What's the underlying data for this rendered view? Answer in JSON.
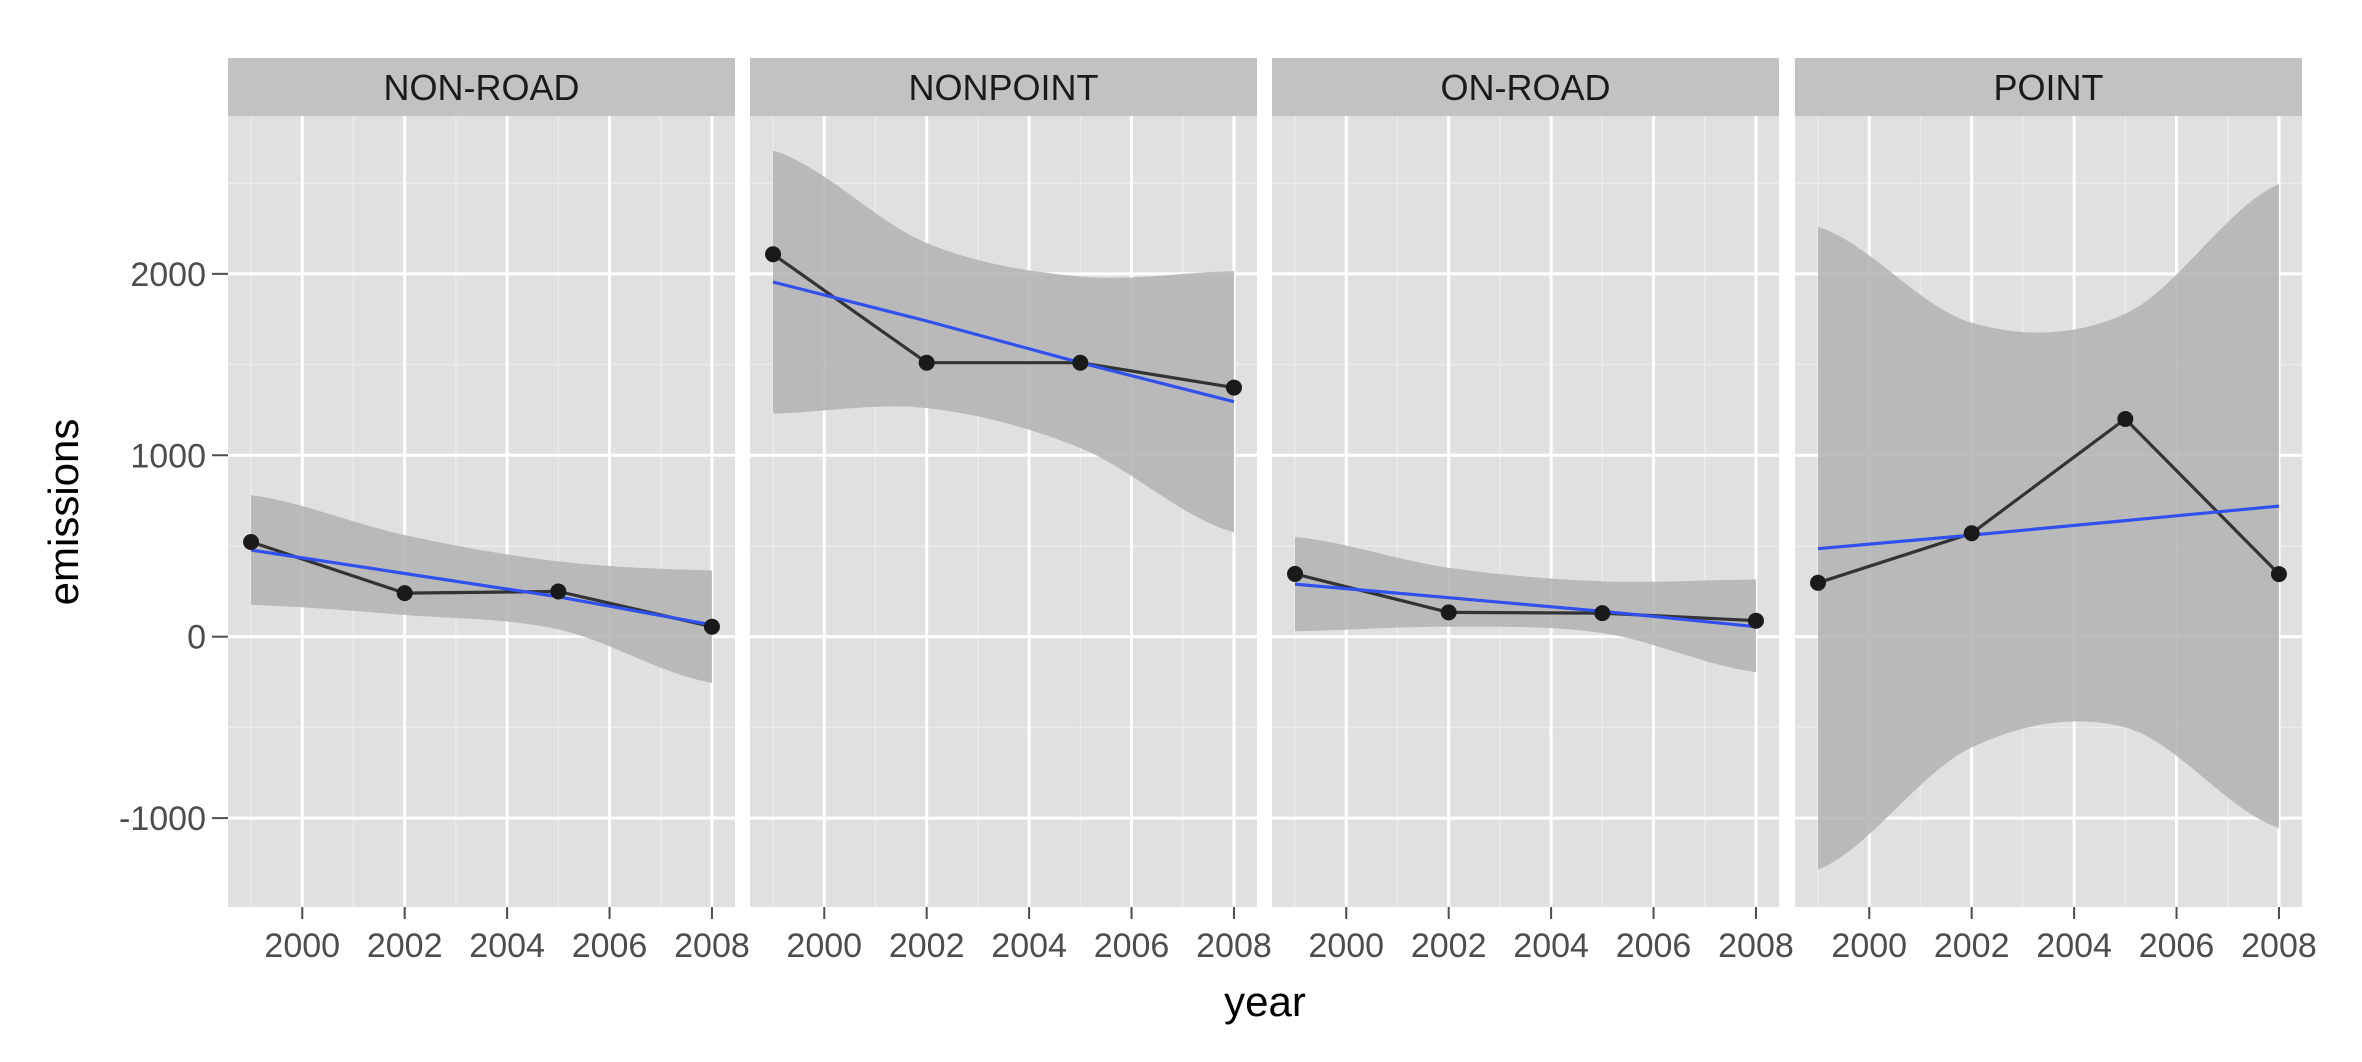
{
  "chart_data": {
    "type": "line",
    "facet_by": "type",
    "panels": [
      {
        "name": "NON-ROAD",
        "x": [
          1999,
          2002,
          2005,
          2008
        ],
        "emissions": [
          522,
          240,
          249,
          55
        ],
        "smooth": {
          "fit": [
            478,
            348,
            220,
            65
          ],
          "lower": [
            175,
            120,
            40,
            -255
          ],
          "upper": [
            780,
            560,
            415,
            365
          ]
        }
      },
      {
        "name": "NONPOINT",
        "x": [
          1999,
          2002,
          2005,
          2008
        ],
        "emissions": [
          2108,
          1510,
          1510,
          1373
        ],
        "smooth": {
          "fit": [
            1955,
            1740,
            1510,
            1295
          ],
          "lower": [
            1230,
            1260,
            1040,
            575
          ],
          "upper": [
            2680,
            2170,
            1985,
            2015
          ]
        }
      },
      {
        "name": "ON-ROAD",
        "x": [
          1999,
          2002,
          2005,
          2008
        ],
        "emissions": [
          346,
          134,
          130,
          88
        ],
        "smooth": {
          "fit": [
            290,
            215,
            140,
            55
          ],
          "lower": [
            30,
            55,
            20,
            -195
          ],
          "upper": [
            550,
            380,
            305,
            315
          ]
        }
      },
      {
        "name": "POINT",
        "x": [
          1999,
          2002,
          2005,
          2008
        ],
        "emissions": [
          297,
          570,
          1200,
          345
        ],
        "smooth": {
          "fit": [
            485,
            560,
            640,
            720
          ],
          "lower": [
            -1285,
            -610,
            -500,
            -1055
          ],
          "upper": [
            2260,
            1730,
            1780,
            2495
          ]
        }
      }
    ],
    "x_ticks": [
      "2000",
      "2002",
      "2004",
      "2006",
      "2008"
    ],
    "x_tick_values": [
      2000,
      2002,
      2004,
      2006,
      2008
    ],
    "y_ticks": [
      "-1000",
      "0",
      "1000",
      "2000"
    ],
    "y_tick_values": [
      -1000,
      0,
      1000,
      2000
    ],
    "xlabel": "year",
    "ylabel": "emissions",
    "xlim": [
      1998.55,
      2008.45
    ],
    "ylim": [
      -1490,
      2870
    ],
    "grid": true,
    "legend": "none",
    "colors": {
      "panel_bg": "#e0e0e0",
      "strip_bg": "#c2c2c2",
      "grid_major": "#ffffff",
      "grid_minor": "#ebebeb",
      "band": "#b2b2b2",
      "line": "#333333",
      "point": "#1a1a1a",
      "fit": "#3050f0"
    }
  }
}
